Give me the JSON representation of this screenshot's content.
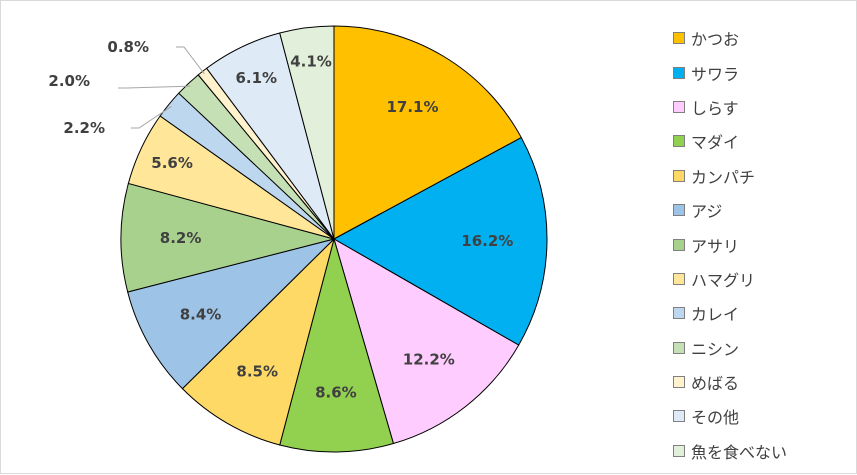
{
  "chart_data": {
    "type": "pie",
    "title": "",
    "categories": [
      "かつお",
      "サワラ",
      "しらす",
      "マダイ",
      "カンパチ",
      "アジ",
      "アサリ",
      "ハマグリ",
      "カレイ",
      "ニシン",
      "めばる",
      "その他",
      "魚を食べない"
    ],
    "values": [
      17.1,
      16.2,
      12.2,
      8.6,
      8.5,
      8.4,
      8.2,
      5.6,
      2.2,
      2.0,
      0.8,
      6.1,
      4.1
    ],
    "data_labels": [
      "17.1%",
      "16.2%",
      "12.2%",
      "8.6%",
      "8.5%",
      "8.4%",
      "8.2%",
      "5.6%",
      "2.2%",
      "2.0%",
      "0.8%",
      "6.1%",
      "4.1%"
    ],
    "colors": [
      "#FFC000",
      "#00B0F0",
      "#FFCCFF",
      "#92D050",
      "#FFD966",
      "#9DC3E6",
      "#A9D18E",
      "#FFE699",
      "#BDD7EE",
      "#C5E0B4",
      "#FFF2CC",
      "#DEEBF7",
      "#E2EFDA"
    ],
    "unit": "%",
    "legend_position": "right",
    "start_angle": "12 o'clock",
    "direction": "clockwise"
  }
}
